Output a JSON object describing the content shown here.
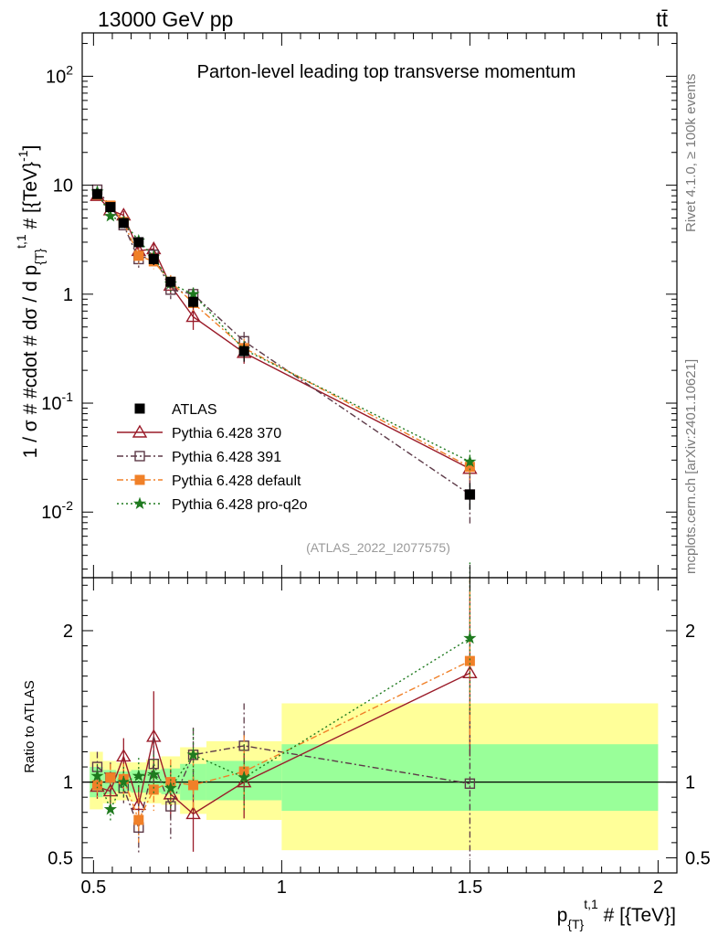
{
  "header": {
    "energy_label": "13000 GeV pp",
    "process_label": "tt̄",
    "side_label_top": "Rivet 4.1.0, ≥ 100k events",
    "side_label_bottom": "mcplots.cern.ch [arXiv:2401.10621]"
  },
  "chart_data": [
    {
      "type": "scatter",
      "panel": "main",
      "title": "Parton-level leading top transverse momentum",
      "ylabel": "1 / σ # #cdot # dσ / d p_{T}^{t,1} # [{TeV}^{-1}]",
      "xlabel": "p_{T}^{t,1} # [{TeV}]",
      "yscale": "log",
      "ylim": [
        0.0025,
        250
      ],
      "xlim": [
        0.47,
        2.05
      ],
      "y_ticks": [
        {
          "value": 0.01,
          "base": "10",
          "exp": "-2"
        },
        {
          "value": 0.1,
          "base": "10",
          "exp": "-1"
        },
        {
          "value": 1,
          "base": "1",
          "exp": ""
        },
        {
          "value": 10,
          "base": "10",
          "exp": ""
        },
        {
          "value": 100,
          "base": "10",
          "exp": "2"
        }
      ],
      "analysis_tag": "(ATLAS_2022_I2077575)",
      "legend_position": "center-left",
      "series": [
        {
          "name": "ATLAS",
          "color": "#000000",
          "marker": "square-filled",
          "line": "none",
          "points": [
            {
              "x": 0.51,
              "y": 8.3,
              "err": 0.4
            },
            {
              "x": 0.545,
              "y": 6.3,
              "err": 0.4
            },
            {
              "x": 0.58,
              "y": 4.5,
              "err": 0.4
            },
            {
              "x": 0.62,
              "y": 3.0,
              "err": 0.3
            },
            {
              "x": 0.66,
              "y": 2.1,
              "err": 0.25
            },
            {
              "x": 0.705,
              "y": 1.3,
              "err": 0.15
            },
            {
              "x": 0.765,
              "y": 0.85,
              "err": 0.1
            },
            {
              "x": 0.9,
              "y": 0.3,
              "err": 0.06
            },
            {
              "x": 1.5,
              "y": 0.0145,
              "err": 0.004
            }
          ]
        },
        {
          "name": "Pythia 6.428 370",
          "color": "#9a1b29",
          "marker": "triangle-open",
          "line": "solid",
          "points": [
            {
              "x": 0.51,
              "y": 8.0,
              "err": 0.5
            },
            {
              "x": 0.545,
              "y": 5.9,
              "err": 0.5
            },
            {
              "x": 0.58,
              "y": 5.3,
              "err": 0.5
            },
            {
              "x": 0.62,
              "y": 2.5,
              "err": 0.35
            },
            {
              "x": 0.66,
              "y": 2.6,
              "err": 0.35
            },
            {
              "x": 0.705,
              "y": 1.2,
              "err": 0.2
            },
            {
              "x": 0.765,
              "y": 0.62,
              "err": 0.15
            },
            {
              "x": 0.9,
              "y": 0.29,
              "err": 0.06
            },
            {
              "x": 1.5,
              "y": 0.025,
              "err": 0.007
            }
          ]
        },
        {
          "name": "Pythia 6.428 391",
          "color": "#5d3a48",
          "marker": "square-open",
          "line": "dashdot",
          "points": [
            {
              "x": 0.51,
              "y": 9.1,
              "err": 0.6
            },
            {
              "x": 0.545,
              "y": 6.4,
              "err": 0.5
            },
            {
              "x": 0.58,
              "y": 4.3,
              "err": 0.45
            },
            {
              "x": 0.62,
              "y": 2.1,
              "err": 0.35
            },
            {
              "x": 0.66,
              "y": 2.3,
              "err": 0.3
            },
            {
              "x": 0.705,
              "y": 1.1,
              "err": 0.2
            },
            {
              "x": 0.765,
              "y": 1.0,
              "err": 0.15
            },
            {
              "x": 0.9,
              "y": 0.37,
              "err": 0.08
            },
            {
              "x": 1.5,
              "y": 0.0145,
              "err": 0.007
            }
          ]
        },
        {
          "name": "Pythia 6.428 default",
          "color": "#f08028",
          "marker": "square-filled",
          "line": "dashdot",
          "points": [
            {
              "x": 0.51,
              "y": 8.2,
              "err": 0.5
            },
            {
              "x": 0.545,
              "y": 6.5,
              "err": 0.5
            },
            {
              "x": 0.58,
              "y": 4.6,
              "err": 0.4
            },
            {
              "x": 0.62,
              "y": 2.25,
              "err": 0.35
            },
            {
              "x": 0.66,
              "y": 2.0,
              "err": 0.3
            },
            {
              "x": 0.705,
              "y": 1.3,
              "err": 0.2
            },
            {
              "x": 0.765,
              "y": 0.83,
              "err": 0.13
            },
            {
              "x": 0.9,
              "y": 0.32,
              "err": 0.07
            },
            {
              "x": 1.5,
              "y": 0.026,
              "err": 0.007
            }
          ]
        },
        {
          "name": "Pythia 6.428 pro-q2o",
          "color": "#1f7a1f",
          "marker": "star",
          "line": "dotted",
          "points": [
            {
              "x": 0.51,
              "y": 8.7,
              "err": 0.5
            },
            {
              "x": 0.545,
              "y": 5.2,
              "err": 0.5
            },
            {
              "x": 0.58,
              "y": 4.6,
              "err": 0.4
            },
            {
              "x": 0.62,
              "y": 3.1,
              "err": 0.35
            },
            {
              "x": 0.66,
              "y": 2.2,
              "err": 0.3
            },
            {
              "x": 0.705,
              "y": 1.25,
              "err": 0.2
            },
            {
              "x": 0.765,
              "y": 1.0,
              "err": 0.15
            },
            {
              "x": 0.9,
              "y": 0.31,
              "err": 0.06
            },
            {
              "x": 1.5,
              "y": 0.029,
              "err": 0.008
            }
          ]
        }
      ]
    },
    {
      "type": "scatter",
      "panel": "ratio",
      "ylabel": "Ratio to ATLAS",
      "xlabel": "p_{T}^{t,1} # [{TeV}]",
      "ylim": [
        0.4,
        2.35
      ],
      "xlim": [
        0.47,
        2.05
      ],
      "y_ticks": [
        0.5,
        1,
        2
      ],
      "x_ticks": [
        0.5,
        1,
        1.5,
        2
      ],
      "x_tick_labels": [
        "0.5",
        "1",
        "1.5",
        "2"
      ],
      "reference_line": 1,
      "uncertainty_bands": [
        {
          "x_low": 0.49,
          "x_high": 0.525,
          "yellow": [
            0.82,
            1.2
          ],
          "green": [
            0.9,
            1.1
          ]
        },
        {
          "x_low": 0.525,
          "x_high": 0.56,
          "yellow": [
            0.86,
            1.14
          ],
          "green": [
            0.92,
            1.08
          ]
        },
        {
          "x_low": 0.56,
          "x_high": 0.6,
          "yellow": [
            0.88,
            1.13
          ],
          "green": [
            0.94,
            1.07
          ]
        },
        {
          "x_low": 0.6,
          "x_high": 0.64,
          "yellow": [
            0.87,
            1.13
          ],
          "green": [
            0.93,
            1.08
          ]
        },
        {
          "x_low": 0.64,
          "x_high": 0.68,
          "yellow": [
            0.86,
            1.15
          ],
          "green": [
            0.93,
            1.08
          ]
        },
        {
          "x_low": 0.68,
          "x_high": 0.73,
          "yellow": [
            0.85,
            1.17
          ],
          "green": [
            0.92,
            1.09
          ]
        },
        {
          "x_low": 0.73,
          "x_high": 0.8,
          "yellow": [
            0.79,
            1.23
          ],
          "green": [
            0.88,
            1.12
          ]
        },
        {
          "x_low": 0.8,
          "x_high": 1.0,
          "yellow": [
            0.75,
            1.27
          ],
          "green": [
            0.88,
            1.14
          ]
        },
        {
          "x_low": 1.0,
          "x_high": 2.0,
          "yellow": [
            0.55,
            1.52
          ],
          "green": [
            0.81,
            1.25
          ]
        }
      ],
      "series": [
        {
          "name": "Pythia 6.428 370",
          "color": "#9a1b29",
          "marker": "triangle-open",
          "line": "solid",
          "points": [
            {
              "x": 0.51,
              "y": 0.97,
              "err": 0.08
            },
            {
              "x": 0.545,
              "y": 0.94,
              "err": 0.09
            },
            {
              "x": 0.58,
              "y": 1.17,
              "err": 0.12
            },
            {
              "x": 0.62,
              "y": 0.85,
              "err": 0.13
            },
            {
              "x": 0.66,
              "y": 1.3,
              "err": 0.3
            },
            {
              "x": 0.705,
              "y": 0.92,
              "err": 0.16
            },
            {
              "x": 0.765,
              "y": 0.79,
              "err": 0.25
            },
            {
              "x": 0.9,
              "y": 1.0,
              "err": 0.24
            },
            {
              "x": 1.5,
              "y": 1.72,
              "err": 0.55
            }
          ]
        },
        {
          "name": "Pythia 6.428 391",
          "color": "#5d3a48",
          "marker": "square-open",
          "line": "dashdot",
          "points": [
            {
              "x": 0.51,
              "y": 1.1,
              "err": 0.1
            },
            {
              "x": 0.545,
              "y": 1.03,
              "err": 0.1
            },
            {
              "x": 0.58,
              "y": 0.96,
              "err": 0.1
            },
            {
              "x": 0.62,
              "y": 0.7,
              "err": 0.18
            },
            {
              "x": 0.66,
              "y": 1.12,
              "err": 0.18
            },
            {
              "x": 0.705,
              "y": 0.84,
              "err": 0.22
            },
            {
              "x": 0.765,
              "y": 1.18,
              "err": 0.18
            },
            {
              "x": 0.9,
              "y": 1.24,
              "err": 0.28
            },
            {
              "x": 1.5,
              "y": 0.99,
              "err": 0.5
            }
          ]
        },
        {
          "name": "Pythia 6.428 default",
          "color": "#f08028",
          "marker": "square-filled",
          "line": "dashdot",
          "points": [
            {
              "x": 0.51,
              "y": 0.98,
              "err": 0.08
            },
            {
              "x": 0.545,
              "y": 1.03,
              "err": 0.09
            },
            {
              "x": 0.58,
              "y": 1.02,
              "err": 0.1
            },
            {
              "x": 0.62,
              "y": 0.75,
              "err": 0.15
            },
            {
              "x": 0.66,
              "y": 0.95,
              "err": 0.14
            },
            {
              "x": 0.705,
              "y": 1.0,
              "err": 0.15
            },
            {
              "x": 0.765,
              "y": 0.98,
              "err": 0.16
            },
            {
              "x": 0.9,
              "y": 1.07,
              "err": 0.24
            },
            {
              "x": 1.5,
              "y": 1.8,
              "err": 0.55
            }
          ]
        },
        {
          "name": "Pythia 6.428 pro-q2o",
          "color": "#1f7a1f",
          "marker": "star",
          "line": "dotted",
          "points": [
            {
              "x": 0.51,
              "y": 1.04,
              "err": 0.08
            },
            {
              "x": 0.545,
              "y": 0.82,
              "err": 0.09
            },
            {
              "x": 0.58,
              "y": 1.0,
              "err": 0.1
            },
            {
              "x": 0.62,
              "y": 1.04,
              "err": 0.12
            },
            {
              "x": 0.66,
              "y": 1.05,
              "err": 0.13
            },
            {
              "x": 0.705,
              "y": 0.96,
              "err": 0.15
            },
            {
              "x": 0.765,
              "y": 1.18,
              "err": 0.17
            },
            {
              "x": 0.9,
              "y": 1.03,
              "err": 0.22
            },
            {
              "x": 1.5,
              "y": 1.95,
              "err": 0.5
            }
          ]
        }
      ]
    }
  ]
}
